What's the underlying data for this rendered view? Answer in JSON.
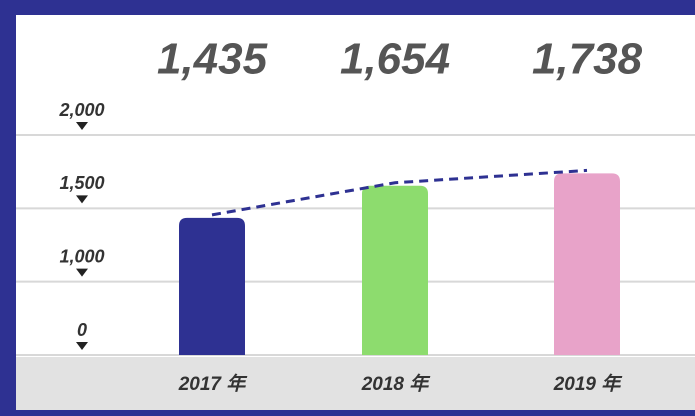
{
  "chart_data": {
    "type": "bar",
    "categories": [
      "2017 年",
      "2018 年",
      "2019 年"
    ],
    "values": [
      1435,
      1654,
      1738
    ],
    "value_labels": [
      "1,435",
      "1,654",
      "1,738"
    ],
    "colors": [
      "#2e3192",
      "#8ddc6e",
      "#e8a3c9"
    ],
    "line_color": "#2e3192",
    "ylim": [
      0,
      2000
    ],
    "yticks": [
      0,
      {
        "value": 1000,
        "label": "1,000"
      },
      {
        "value": 1500,
        "label": "1,500"
      },
      {
        "value": 2000,
        "label": "2,000"
      }
    ],
    "grid": true
  }
}
